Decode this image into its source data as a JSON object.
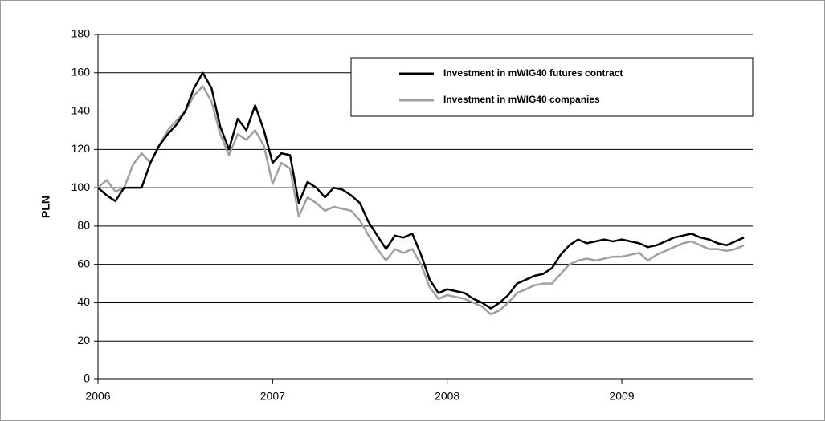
{
  "chart_data": {
    "type": "line",
    "ylabel": "PLN",
    "x": [
      2006,
      2006.05,
      2006.1,
      2006.15,
      2006.2,
      2006.25,
      2006.3,
      2006.35,
      2006.4,
      2006.45,
      2006.5,
      2006.55,
      2006.6,
      2006.65,
      2006.7,
      2006.75,
      2006.8,
      2006.85,
      2006.9,
      2006.95,
      2007,
      2007.05,
      2007.1,
      2007.15,
      2007.2,
      2007.25,
      2007.3,
      2007.35,
      2007.4,
      2007.45,
      2007.5,
      2007.55,
      2007.6,
      2007.65,
      2007.7,
      2007.75,
      2007.8,
      2007.85,
      2007.9,
      2007.95,
      2008,
      2008.05,
      2008.1,
      2008.15,
      2008.2,
      2008.25,
      2008.3,
      2008.35,
      2008.4,
      2008.45,
      2008.5,
      2008.55,
      2008.6,
      2008.65,
      2008.7,
      2008.75,
      2008.8,
      2008.85,
      2008.9,
      2008.95,
      2009,
      2009.05,
      2009.1,
      2009.15,
      2009.2,
      2009.25,
      2009.3,
      2009.35,
      2009.4,
      2009.45,
      2009.5,
      2009.55,
      2009.6,
      2009.65,
      2009.7
    ],
    "series": [
      {
        "name": "Investment in mWIG40 futures contract",
        "color": "#000000",
        "values": [
          100,
          96,
          93,
          100,
          100,
          100,
          113,
          122,
          128,
          133,
          140,
          152,
          160,
          152,
          132,
          120,
          136,
          130,
          143,
          130,
          113,
          118,
          117,
          92,
          103,
          100,
          95,
          100,
          99,
          96,
          92,
          82,
          75,
          68,
          75,
          74,
          76,
          65,
          52,
          45,
          47,
          46,
          45,
          42,
          40,
          37,
          40,
          44,
          50,
          52,
          54,
          55,
          58,
          65,
          70,
          73,
          71,
          72,
          73,
          72,
          73,
          72,
          71,
          69,
          70,
          72,
          74,
          75,
          76,
          74,
          73,
          71,
          70,
          72,
          74
        ]
      },
      {
        "name": "Investment in mWIG40 companies",
        "color": "#a0a0a0",
        "values": [
          100,
          104,
          98,
          100,
          112,
          118,
          113,
          122,
          130,
          135,
          140,
          148,
          153,
          145,
          128,
          117,
          128,
          125,
          130,
          122,
          102,
          113,
          110,
          85,
          95,
          92,
          88,
          90,
          89,
          88,
          83,
          75,
          68,
          62,
          68,
          66,
          68,
          60,
          48,
          42,
          44,
          43,
          42,
          40,
          38,
          34,
          36,
          40,
          45,
          47,
          49,
          50,
          50,
          55,
          60,
          62,
          63,
          62,
          63,
          64,
          64,
          65,
          66,
          62,
          65,
          67,
          69,
          71,
          72,
          70,
          68,
          68,
          67,
          68,
          70
        ]
      }
    ],
    "xlim": [
      2006,
      2009.75
    ],
    "xticks": [
      2006,
      2007,
      2008,
      2009
    ],
    "ylim": [
      0,
      180
    ],
    "yticks": [
      0,
      20,
      40,
      60,
      80,
      100,
      120,
      140,
      160,
      180
    ],
    "grid": true
  }
}
